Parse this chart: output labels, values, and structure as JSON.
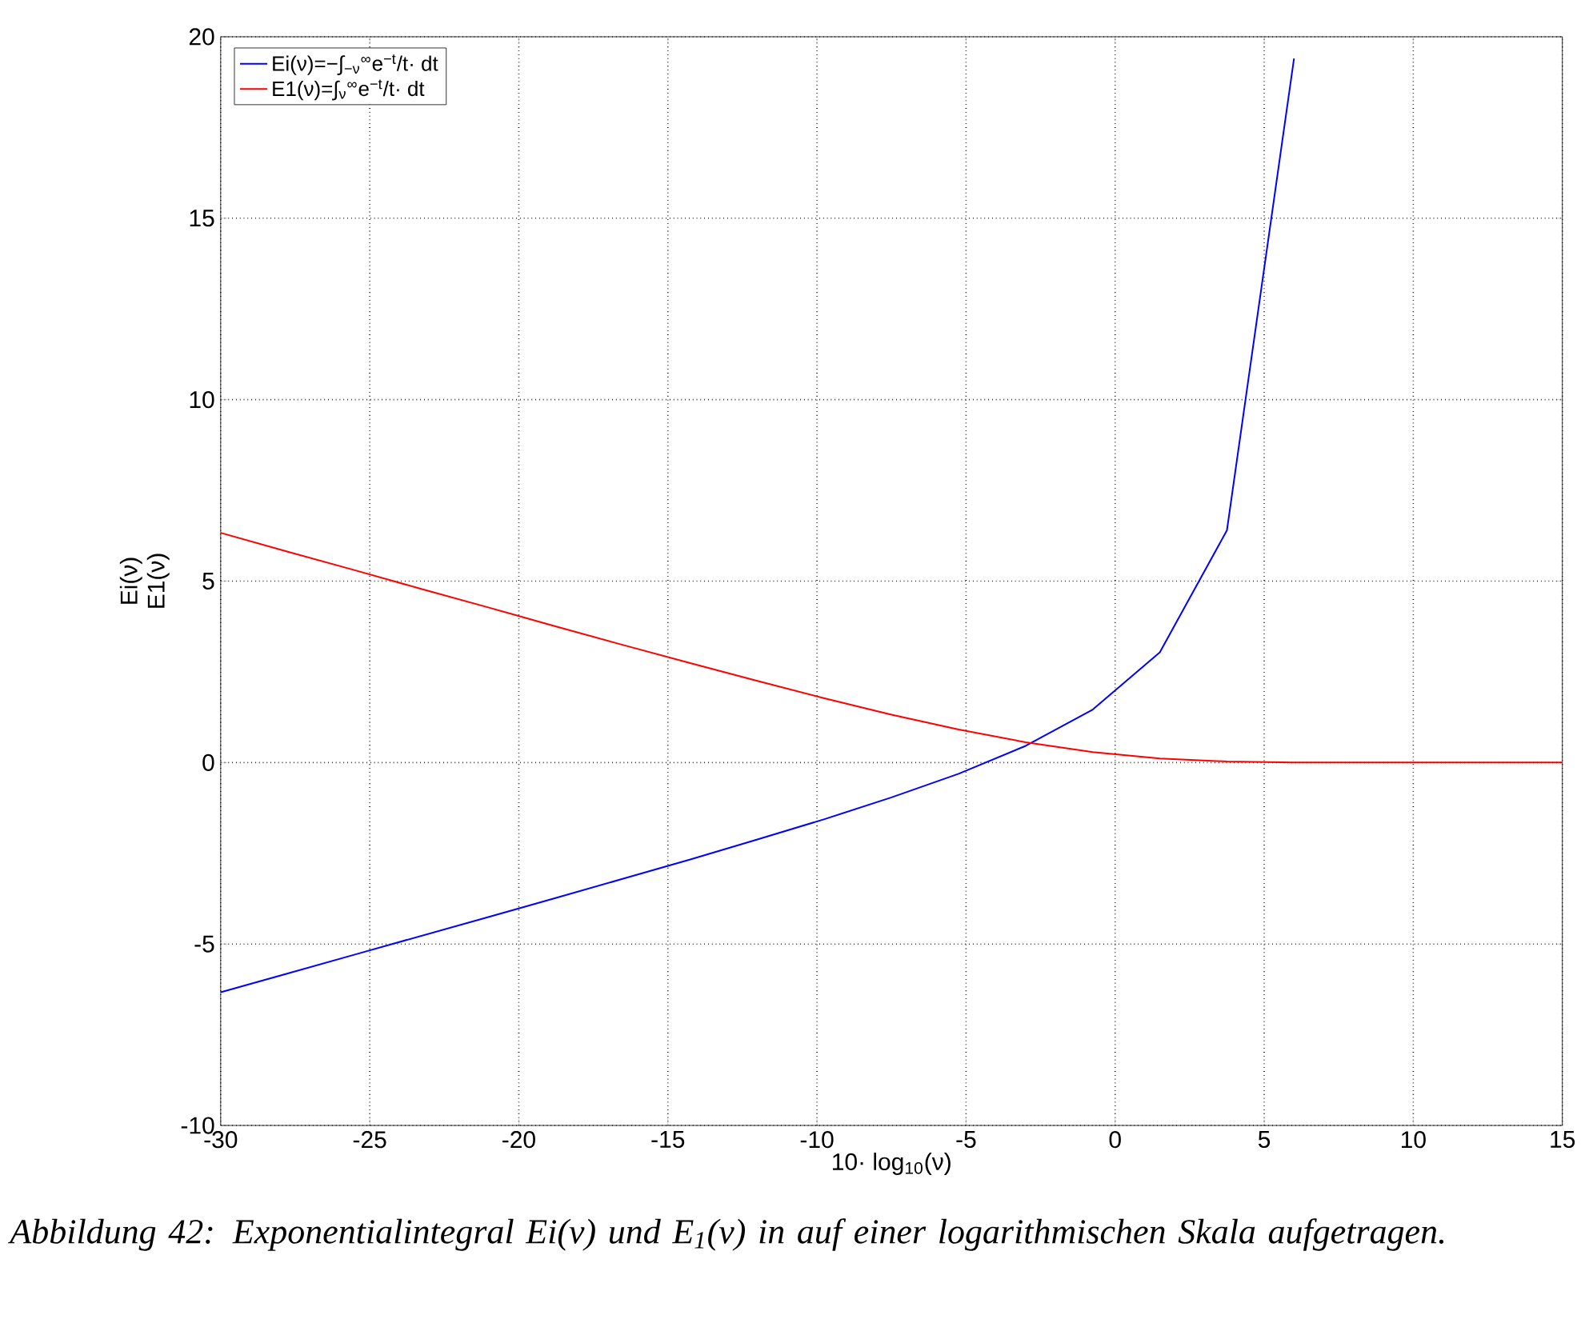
{
  "chart_data": {
    "type": "line",
    "xlabel": "10· log$_{10}$(ν)",
    "ylabel": "Ei(ν) E1(ν)",
    "x": [
      -30,
      -27.75,
      -25.5,
      -23.25,
      -21,
      -18.75,
      -16.5,
      -14.25,
      -12,
      -9.75,
      -7.5,
      -5.25,
      -3,
      -0.75,
      1.5,
      3.75,
      6,
      8.25,
      10.5,
      12.75,
      15
    ],
    "series": [
      {
        "name": "Ei(ν)=−∫$_{−ν}$$^{∞}$e$^{−t}$/t· dt",
        "color": "#0000ff",
        "values": [
          -6.33,
          -5.81,
          -5.29,
          -4.77,
          -4.25,
          -3.73,
          -3.2,
          -2.67,
          -2.12,
          -1.56,
          -0.96,
          -0.31,
          0.46,
          1.46,
          3.04,
          6.4,
          19.4,
          null,
          null,
          null,
          null
        ]
      },
      {
        "name": "E1(ν)=∫$_{ν}$$^{∞}$e$^{−t}$/t· dt",
        "color": "#ff0000",
        "values": [
          6.33,
          5.81,
          5.3,
          4.78,
          4.27,
          3.75,
          3.24,
          2.74,
          2.25,
          1.77,
          1.32,
          0.91,
          0.56,
          0.29,
          0.11,
          0.03,
          0.0,
          0.0,
          0.0,
          0.0,
          0.0
        ]
      }
    ],
    "xlim": [
      -30,
      15
    ],
    "ylim": [
      -10,
      20
    ],
    "xticks": [
      -30,
      -25,
      -20,
      -15,
      -10,
      -5,
      0,
      5,
      10,
      15
    ],
    "yticks": [
      -10,
      -5,
      0,
      5,
      10,
      15,
      20
    ],
    "grid": true,
    "legend": "top left",
    "line_style": "solid",
    "annotations": [
      "Abbildung 42: Exponentialintegral Ei(ν) und E$_{1}$(ν) in auf einer logarithmischen Skala aufgetragen."
    ]
  }
}
